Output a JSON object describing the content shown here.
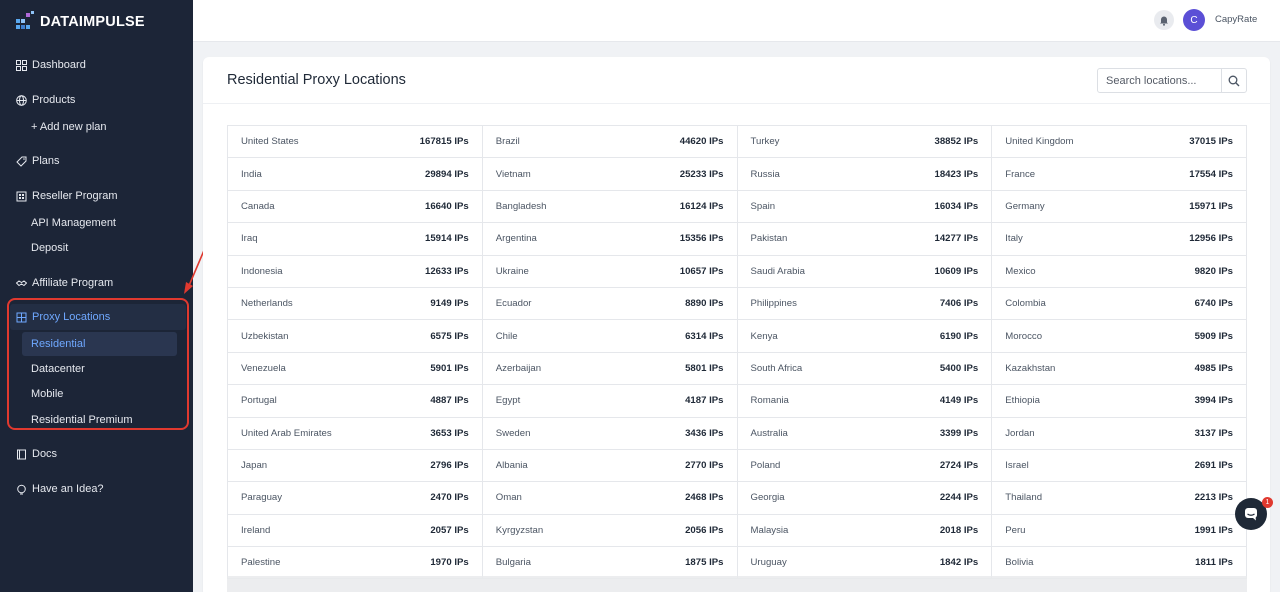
{
  "brand": {
    "name": "DATAIMPULSE"
  },
  "sidebar": {
    "items": [
      {
        "key": "dashboard",
        "label": "Dashboard",
        "icon": "grid-icon"
      },
      {
        "key": "products",
        "label": "Products",
        "icon": "globe-icon"
      },
      {
        "key": "add_plan",
        "label": "+ Add new plan"
      },
      {
        "key": "plans",
        "label": "Plans",
        "icon": "tag-icon"
      },
      {
        "key": "reseller",
        "label": "Reseller Program",
        "icon": "building-icon"
      },
      {
        "key": "api",
        "label": "API Management"
      },
      {
        "key": "deposit",
        "label": "Deposit"
      },
      {
        "key": "affiliate",
        "label": "Affiliate Program",
        "icon": "handshake-icon"
      },
      {
        "key": "proxy_locations",
        "label": "Proxy Locations",
        "icon": "map-icon"
      },
      {
        "key": "residential",
        "label": "Residential"
      },
      {
        "key": "datacenter",
        "label": "Datacenter"
      },
      {
        "key": "mobile",
        "label": "Mobile"
      },
      {
        "key": "residential_premium",
        "label": "Residential Premium"
      },
      {
        "key": "docs",
        "label": "Docs",
        "icon": "book-icon"
      },
      {
        "key": "idea",
        "label": "Have an Idea?",
        "icon": "lightbulb-icon"
      }
    ]
  },
  "header": {
    "avatar_initial": "C",
    "username": "CapyRate"
  },
  "main": {
    "title": "Residential Proxy Locations",
    "search_placeholder": "Search locations...",
    "rows": [
      [
        [
          "United States",
          "167815 IPs"
        ],
        [
          "Brazil",
          "44620 IPs"
        ],
        [
          "Turkey",
          "38852 IPs"
        ],
        [
          "United Kingdom",
          "37015 IPs"
        ]
      ],
      [
        [
          "India",
          "29894 IPs"
        ],
        [
          "Vietnam",
          "25233 IPs"
        ],
        [
          "Russia",
          "18423 IPs"
        ],
        [
          "France",
          "17554 IPs"
        ]
      ],
      [
        [
          "Canada",
          "16640 IPs"
        ],
        [
          "Bangladesh",
          "16124 IPs"
        ],
        [
          "Spain",
          "16034 IPs"
        ],
        [
          "Germany",
          "15971 IPs"
        ]
      ],
      [
        [
          "Iraq",
          "15914 IPs"
        ],
        [
          "Argentina",
          "15356 IPs"
        ],
        [
          "Pakistan",
          "14277 IPs"
        ],
        [
          "Italy",
          "12956 IPs"
        ]
      ],
      [
        [
          "Indonesia",
          "12633 IPs"
        ],
        [
          "Ukraine",
          "10657 IPs"
        ],
        [
          "Saudi Arabia",
          "10609 IPs"
        ],
        [
          "Mexico",
          "9820 IPs"
        ]
      ],
      [
        [
          "Netherlands",
          "9149 IPs"
        ],
        [
          "Ecuador",
          "8890 IPs"
        ],
        [
          "Philippines",
          "7406 IPs"
        ],
        [
          "Colombia",
          "6740 IPs"
        ]
      ],
      [
        [
          "Uzbekistan",
          "6575 IPs"
        ],
        [
          "Chile",
          "6314 IPs"
        ],
        [
          "Kenya",
          "6190 IPs"
        ],
        [
          "Morocco",
          "5909 IPs"
        ]
      ],
      [
        [
          "Venezuela",
          "5901 IPs"
        ],
        [
          "Azerbaijan",
          "5801 IPs"
        ],
        [
          "South Africa",
          "5400 IPs"
        ],
        [
          "Kazakhstan",
          "4985 IPs"
        ]
      ],
      [
        [
          "Portugal",
          "4887 IPs"
        ],
        [
          "Egypt",
          "4187 IPs"
        ],
        [
          "Romania",
          "4149 IPs"
        ],
        [
          "Ethiopia",
          "3994 IPs"
        ]
      ],
      [
        [
          "United Arab Emirates",
          "3653 IPs"
        ],
        [
          "Sweden",
          "3436 IPs"
        ],
        [
          "Australia",
          "3399 IPs"
        ],
        [
          "Jordan",
          "3137 IPs"
        ]
      ],
      [
        [
          "Japan",
          "2796 IPs"
        ],
        [
          "Albania",
          "2770 IPs"
        ],
        [
          "Poland",
          "2724 IPs"
        ],
        [
          "Israel",
          "2691 IPs"
        ]
      ],
      [
        [
          "Paraguay",
          "2470 IPs"
        ],
        [
          "Oman",
          "2468 IPs"
        ],
        [
          "Georgia",
          "2244 IPs"
        ],
        [
          "Thailand",
          "2213 IPs"
        ]
      ],
      [
        [
          "Ireland",
          "2057 IPs"
        ],
        [
          "Kyrgyzstan",
          "2056 IPs"
        ],
        [
          "Malaysia",
          "2018 IPs"
        ],
        [
          "Peru",
          "1991 IPs"
        ]
      ],
      [
        [
          "Palestine",
          "1970 IPs"
        ],
        [
          "Bulgaria",
          "1875 IPs"
        ],
        [
          "Uruguay",
          "1842 IPs"
        ],
        [
          "Bolivia",
          "1811 IPs"
        ]
      ]
    ]
  },
  "chat": {
    "badge_count": "1"
  },
  "colors": {
    "sidebar_bg": "#1c2537",
    "accent": "#6fa8ff",
    "highlight_border": "#e0392f"
  }
}
